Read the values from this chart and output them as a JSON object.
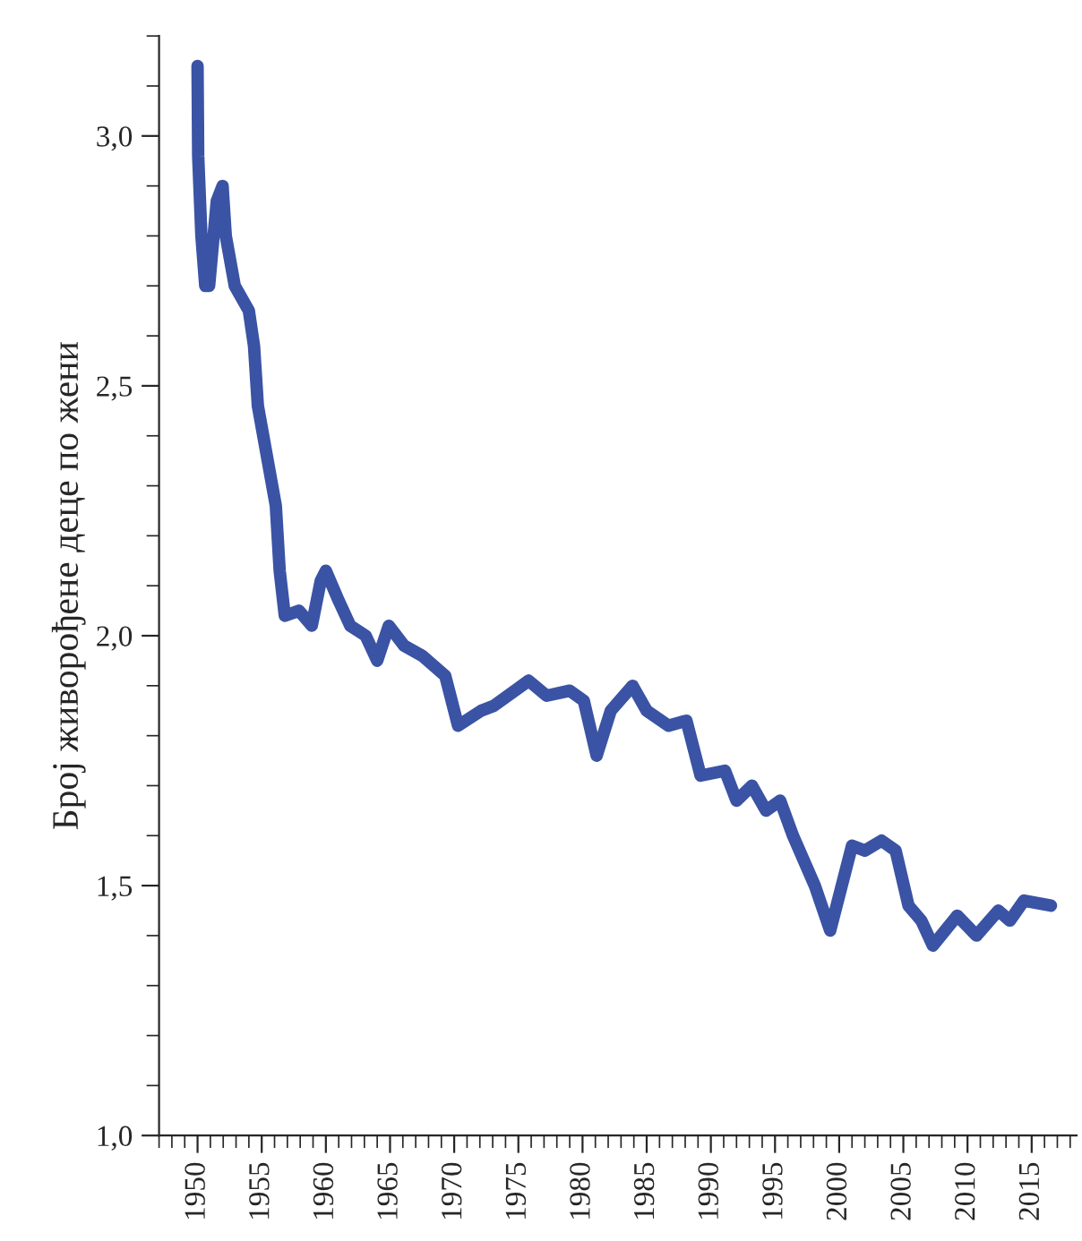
{
  "chart_data": {
    "type": "line",
    "ylabel": "Број живорођене деце по жени",
    "x": [
      1950.0,
      1950.05,
      1950.3,
      1950.6,
      1950.9,
      1951.5,
      1951.95,
      1952.2,
      1952.9,
      1954.0,
      1954.4,
      1954.7,
      1956.1,
      1956.4,
      1956.8,
      1957.9,
      1958.9,
      1959.6,
      1960.0,
      1961.0,
      1961.9,
      1963.1,
      1964.0,
      1964.9,
      1966.1,
      1967.5,
      1969.3,
      1970.3,
      1972.1,
      1973.1,
      1975.8,
      1977.2,
      1979.0,
      1980.1,
      1981.1,
      1982.2,
      1983.9,
      1985.0,
      1986.7,
      1988.1,
      1989.2,
      1991.1,
      1992.0,
      1993.2,
      1994.3,
      1995.4,
      1996.4,
      1998.1,
      1999.3,
      2001.0,
      2002.0,
      2003.3,
      2004.4,
      2005.4,
      2006.4,
      2007.3,
      2009.2,
      2010.7,
      2012.4,
      2013.3,
      2014.4,
      2016.5
    ],
    "series": [
      {
        "color": "#3a53a4",
        "values": [
          3.14,
          2.96,
          2.8,
          2.7,
          2.7,
          2.87,
          2.9,
          2.8,
          2.7,
          2.65,
          2.58,
          2.46,
          2.26,
          2.13,
          2.04,
          2.05,
          2.02,
          2.11,
          2.13,
          2.07,
          2.02,
          2.0,
          1.95,
          2.02,
          1.98,
          1.96,
          1.92,
          1.82,
          1.85,
          1.86,
          1.91,
          1.88,
          1.89,
          1.87,
          1.76,
          1.85,
          1.9,
          1.85,
          1.82,
          1.83,
          1.72,
          1.73,
          1.67,
          1.7,
          1.65,
          1.67,
          1.6,
          1.5,
          1.41,
          1.58,
          1.57,
          1.59,
          1.57,
          1.46,
          1.43,
          1.38,
          1.44,
          1.4,
          1.45,
          1.43,
          1.47,
          1.46
        ]
      }
    ],
    "xlim": [
      1947,
      2018.5
    ],
    "ylim": [
      1.0,
      3.2
    ],
    "xticks": [
      1950,
      1955,
      1960,
      1965,
      1970,
      1975,
      1980,
      1985,
      1990,
      1995,
      2000,
      2005,
      2010,
      2015
    ],
    "yticks": [
      {
        "value": 1.0,
        "label": "1,0"
      },
      {
        "value": 1.5,
        "label": "1,5"
      },
      {
        "value": 2.0,
        "label": "2,0"
      },
      {
        "value": 2.5,
        "label": "2,5"
      },
      {
        "value": 3.0,
        "label": "3,0"
      }
    ],
    "grid": false,
    "legend": false,
    "marker": "none",
    "line_style": "solid"
  }
}
